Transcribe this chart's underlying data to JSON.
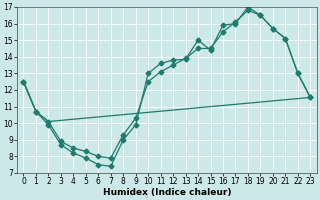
{
  "xlabel": "Humidex (Indice chaleur)",
  "bg_color": "#cce8e8",
  "line_color": "#1e7b6e",
  "xlim": [
    -0.5,
    23.5
  ],
  "ylim": [
    7,
    17
  ],
  "xticks": [
    0,
    1,
    2,
    3,
    4,
    5,
    6,
    7,
    8,
    9,
    10,
    11,
    12,
    13,
    14,
    15,
    16,
    17,
    18,
    19,
    20,
    21,
    22,
    23
  ],
  "yticks": [
    7,
    8,
    9,
    10,
    11,
    12,
    13,
    14,
    15,
    16,
    17
  ],
  "line1_x": [
    0,
    1,
    2,
    3,
    4,
    5,
    6,
    7,
    8,
    9,
    10,
    11,
    12,
    13,
    14,
    15,
    16,
    17,
    18,
    19,
    20,
    21,
    22,
    23
  ],
  "line1_y": [
    12.5,
    10.7,
    9.9,
    8.7,
    8.2,
    7.9,
    7.5,
    7.4,
    9.0,
    9.9,
    13.0,
    13.6,
    13.8,
    13.85,
    15.0,
    14.4,
    15.9,
    16.0,
    17.0,
    16.5,
    15.7,
    15.1,
    13.0,
    11.55
  ],
  "line2_x": [
    0,
    1,
    2,
    3,
    4,
    5,
    6,
    7,
    8,
    9,
    10,
    11,
    12,
    13,
    14,
    15,
    16,
    17,
    18,
    19,
    20,
    21,
    22,
    23
  ],
  "line2_y": [
    12.5,
    10.7,
    10.1,
    8.9,
    8.5,
    8.3,
    8.0,
    7.9,
    9.3,
    10.3,
    12.5,
    13.1,
    13.5,
    13.9,
    14.5,
    14.5,
    15.5,
    16.1,
    16.8,
    16.5,
    15.7,
    15.1,
    13.0,
    11.55
  ],
  "line3_x": [
    0,
    1,
    2,
    23
  ],
  "line3_y": [
    12.5,
    10.7,
    10.1,
    11.55
  ],
  "marker_size": 2.5,
  "line_width": 0.9,
  "tick_fontsize": 5.5,
  "xlabel_fontsize": 6.5
}
